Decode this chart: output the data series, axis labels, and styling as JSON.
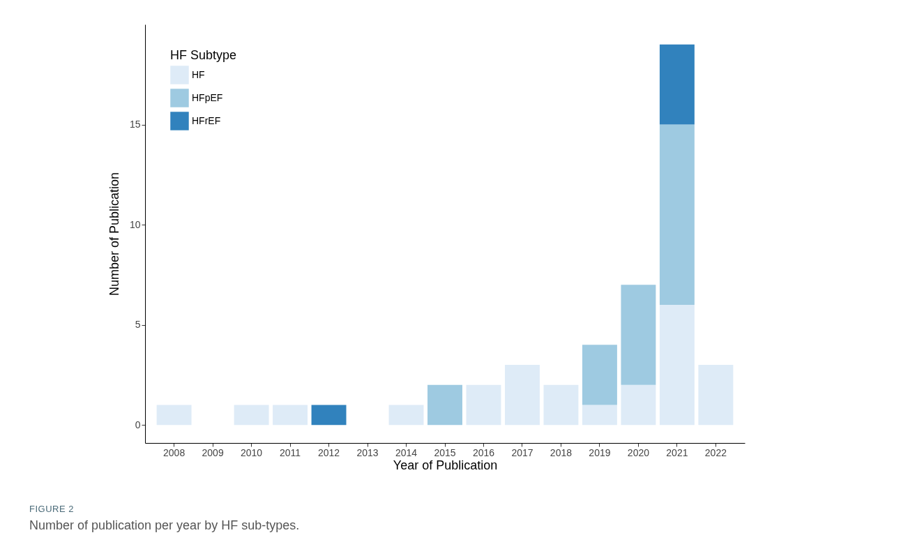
{
  "chart_data": {
    "type": "bar",
    "stacked": true,
    "categories": [
      "2008",
      "2009",
      "2010",
      "2011",
      "2012",
      "2013",
      "2014",
      "2015",
      "2016",
      "2017",
      "2018",
      "2019",
      "2020",
      "2021",
      "2022"
    ],
    "series": [
      {
        "name": "HF",
        "color": "#deebf7",
        "values": [
          1,
          0,
          1,
          1,
          null,
          0,
          1,
          null,
          2,
          3,
          2,
          1,
          2,
          6,
          3
        ]
      },
      {
        "name": "HFpEF",
        "color": "#9ecae1",
        "values": [
          null,
          null,
          null,
          null,
          null,
          null,
          null,
          2,
          null,
          null,
          null,
          3,
          5,
          9,
          null
        ]
      },
      {
        "name": "HFrEF",
        "color": "#3182bd",
        "values": [
          null,
          null,
          null,
          null,
          1,
          null,
          null,
          null,
          null,
          null,
          null,
          null,
          null,
          4,
          null
        ]
      }
    ],
    "ylim": [
      -0.9,
      20
    ],
    "yticks": [
      0,
      5,
      10,
      15
    ],
    "xlabel": "Year of Publication",
    "ylabel": "Number of Publication",
    "legend_title": "HF Subtype",
    "legend": "top left",
    "grid": false,
    "annotations": [
      "FIGURE 2",
      "Number of publication per year by HF sub-types."
    ]
  }
}
